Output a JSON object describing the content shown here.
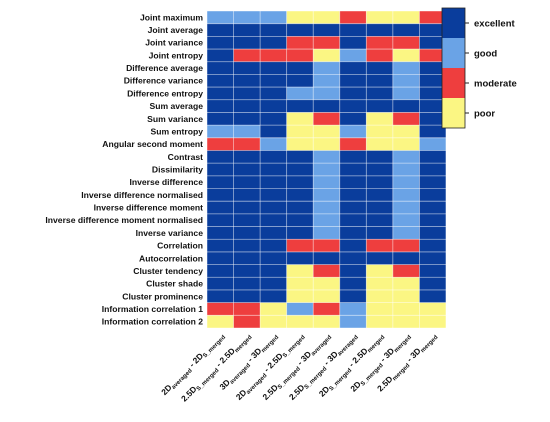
{
  "chart_data": {
    "type": "heatmap",
    "rows": [
      "Joint maximum",
      "Joint average",
      "Joint variance",
      "Joint entropy",
      "Difference average",
      "Difference variance",
      "Difference entropy",
      "Sum average",
      "Sum variance",
      "Sum entropy",
      "Angular second moment",
      "Contrast",
      "Dissimilarity",
      "Inverse difference",
      "Inverse difference normalised",
      "Inverse difference moment",
      "Inverse difference moment normalised",
      "Inverse variance",
      "Correlation",
      "Autocorrelation",
      "Cluster tendency",
      "Cluster shade",
      "Cluster prominence",
      "Information correlation 1",
      "Information correlation 2"
    ],
    "columns": [
      [
        {
          "t": "2D"
        },
        {
          "t": "averaged",
          "s": 1
        },
        {
          "t": " - 2D"
        },
        {
          "t": "S_merged",
          "s": 1
        }
      ],
      [
        {
          "t": "2.5D"
        },
        {
          "t": "S_merged",
          "s": 1
        },
        {
          "t": " - 2.5D"
        },
        {
          "t": "merged",
          "s": 1
        }
      ],
      [
        {
          "t": "3D"
        },
        {
          "t": "averaged",
          "s": 1
        },
        {
          "t": " - 3D"
        },
        {
          "t": "merged",
          "s": 1
        }
      ],
      [
        {
          "t": "2D"
        },
        {
          "t": "averaged",
          "s": 1
        },
        {
          "t": " - 2.5D"
        },
        {
          "t": "S_merged",
          "s": 1
        }
      ],
      [
        {
          "t": "2.5D"
        },
        {
          "t": "S_merged",
          "s": 1
        },
        {
          "t": " - 3D"
        },
        {
          "t": "averaged",
          "s": 1
        }
      ],
      [
        {
          "t": "2.5D"
        },
        {
          "t": "S_merged",
          "s": 1
        },
        {
          "t": " - 3D"
        },
        {
          "t": "averaged",
          "s": 1
        }
      ],
      [
        {
          "t": "2D"
        },
        {
          "t": "S_merged",
          "s": 1
        },
        {
          "t": " - 2.5D"
        },
        {
          "t": "merged",
          "s": 1
        }
      ],
      [
        {
          "t": "2D"
        },
        {
          "t": "S_merged",
          "s": 1
        },
        {
          "t": " - 3D"
        },
        {
          "t": "merged",
          "s": 1
        }
      ],
      [
        {
          "t": "2.5D"
        },
        {
          "t": "merged",
          "s": 1
        },
        {
          "t": " - 3D"
        },
        {
          "t": "merged",
          "s": 1
        }
      ]
    ],
    "categories": [
      "excellent",
      "good",
      "moderate",
      "poor"
    ],
    "colors": {
      "excellent": "#0a3d9c",
      "good": "#6aa3e6",
      "moderate": "#ee3e3e",
      "poor": "#fbf683"
    },
    "values": [
      [
        "good",
        "good",
        "good",
        "poor",
        "poor",
        "moderate",
        "poor",
        "poor",
        "moderate"
      ],
      [
        "excellent",
        "excellent",
        "excellent",
        "excellent",
        "excellent",
        "excellent",
        "excellent",
        "excellent",
        "excellent"
      ],
      [
        "excellent",
        "excellent",
        "excellent",
        "moderate",
        "moderate",
        "excellent",
        "moderate",
        "moderate",
        "excellent"
      ],
      [
        "excellent",
        "moderate",
        "moderate",
        "moderate",
        "poor",
        "good",
        "moderate",
        "poor",
        "moderate"
      ],
      [
        "excellent",
        "excellent",
        "excellent",
        "excellent",
        "good",
        "excellent",
        "excellent",
        "good",
        "excellent"
      ],
      [
        "excellent",
        "excellent",
        "excellent",
        "excellent",
        "good",
        "excellent",
        "excellent",
        "good",
        "excellent"
      ],
      [
        "excellent",
        "excellent",
        "excellent",
        "good",
        "good",
        "excellent",
        "excellent",
        "good",
        "excellent"
      ],
      [
        "excellent",
        "excellent",
        "excellent",
        "excellent",
        "excellent",
        "excellent",
        "excellent",
        "excellent",
        "excellent"
      ],
      [
        "excellent",
        "excellent",
        "excellent",
        "poor",
        "moderate",
        "excellent",
        "poor",
        "moderate",
        "excellent"
      ],
      [
        "good",
        "good",
        "excellent",
        "poor",
        "poor",
        "good",
        "poor",
        "poor",
        "excellent"
      ],
      [
        "moderate",
        "moderate",
        "good",
        "poor",
        "poor",
        "moderate",
        "poor",
        "poor",
        "good"
      ],
      [
        "excellent",
        "excellent",
        "excellent",
        "excellent",
        "good",
        "excellent",
        "excellent",
        "good",
        "excellent"
      ],
      [
        "excellent",
        "excellent",
        "excellent",
        "excellent",
        "good",
        "excellent",
        "excellent",
        "good",
        "excellent"
      ],
      [
        "excellent",
        "excellent",
        "excellent",
        "excellent",
        "good",
        "excellent",
        "excellent",
        "good",
        "excellent"
      ],
      [
        "excellent",
        "excellent",
        "excellent",
        "excellent",
        "good",
        "excellent",
        "excellent",
        "good",
        "excellent"
      ],
      [
        "excellent",
        "excellent",
        "excellent",
        "excellent",
        "good",
        "excellent",
        "excellent",
        "good",
        "excellent"
      ],
      [
        "excellent",
        "excellent",
        "excellent",
        "excellent",
        "good",
        "excellent",
        "excellent",
        "good",
        "excellent"
      ],
      [
        "excellent",
        "excellent",
        "excellent",
        "excellent",
        "good",
        "excellent",
        "excellent",
        "good",
        "excellent"
      ],
      [
        "excellent",
        "excellent",
        "excellent",
        "moderate",
        "moderate",
        "excellent",
        "moderate",
        "moderate",
        "excellent"
      ],
      [
        "excellent",
        "excellent",
        "excellent",
        "excellent",
        "excellent",
        "excellent",
        "excellent",
        "excellent",
        "excellent"
      ],
      [
        "excellent",
        "excellent",
        "excellent",
        "poor",
        "moderate",
        "excellent",
        "poor",
        "moderate",
        "excellent"
      ],
      [
        "excellent",
        "excellent",
        "excellent",
        "poor",
        "poor",
        "excellent",
        "poor",
        "poor",
        "excellent"
      ],
      [
        "excellent",
        "excellent",
        "excellent",
        "poor",
        "poor",
        "excellent",
        "poor",
        "poor",
        "excellent"
      ],
      [
        "moderate",
        "moderate",
        "poor",
        "good",
        "moderate",
        "good",
        "poor",
        "poor",
        "poor"
      ],
      [
        "poor",
        "moderate",
        "poor",
        "poor",
        "poor",
        "good",
        "poor",
        "poor",
        "poor"
      ]
    ],
    "legend_position": "right"
  }
}
